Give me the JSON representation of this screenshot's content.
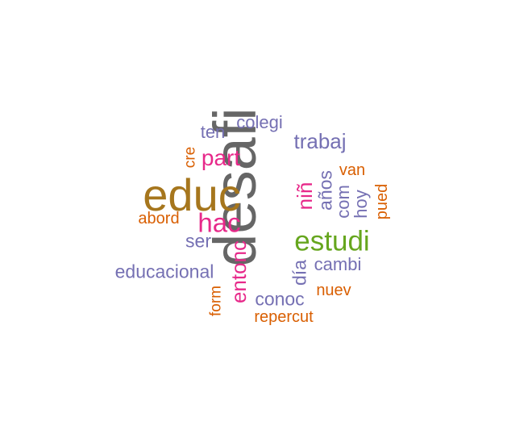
{
  "colors": {
    "gray": "#666666",
    "gold": "#A6761D",
    "green": "#66A61E",
    "magenta": "#E7298A",
    "purple": "#7570B3",
    "orange": "#D95F02"
  },
  "words": [
    {
      "text": "desafi",
      "color": "#666666",
      "rotated": true
    },
    {
      "text": "educ",
      "color": "#A6761D",
      "rotated": false
    },
    {
      "text": "estudi",
      "color": "#66A61E",
      "rotated": false
    },
    {
      "text": "hac",
      "color": "#E7298A",
      "rotated": false
    },
    {
      "text": "part",
      "color": "#E7298A",
      "rotated": false
    },
    {
      "text": "niñ",
      "color": "#E7298A",
      "rotated": true
    },
    {
      "text": "trabaj",
      "color": "#7570B3",
      "rotated": false
    },
    {
      "text": "entonc",
      "color": "#E7298A",
      "rotated": true
    },
    {
      "text": "años",
      "color": "#7570B3",
      "rotated": true
    },
    {
      "text": "educacional",
      "color": "#7570B3",
      "rotated": false
    },
    {
      "text": "conoc",
      "color": "#7570B3",
      "rotated": false
    },
    {
      "text": "día",
      "color": "#7570B3",
      "rotated": true
    },
    {
      "text": "ser",
      "color": "#7570B3",
      "rotated": false
    },
    {
      "text": "colegi",
      "color": "#7570B3",
      "rotated": false
    },
    {
      "text": "cambi",
      "color": "#7570B3",
      "rotated": false
    },
    {
      "text": "hoy",
      "color": "#7570B3",
      "rotated": true
    },
    {
      "text": "ten",
      "color": "#7570B3",
      "rotated": false
    },
    {
      "text": "com",
      "color": "#7570B3",
      "rotated": true
    },
    {
      "text": "repercut",
      "color": "#D95F02",
      "rotated": false
    },
    {
      "text": "abord",
      "color": "#D95F02",
      "rotated": false
    },
    {
      "text": "nuev",
      "color": "#D95F02",
      "rotated": false
    },
    {
      "text": "van",
      "color": "#D95F02",
      "rotated": false
    },
    {
      "text": "pued",
      "color": "#D95F02",
      "rotated": true
    },
    {
      "text": "form",
      "color": "#D95F02",
      "rotated": true
    },
    {
      "text": "cre",
      "color": "#D95F02",
      "rotated": true
    }
  ]
}
